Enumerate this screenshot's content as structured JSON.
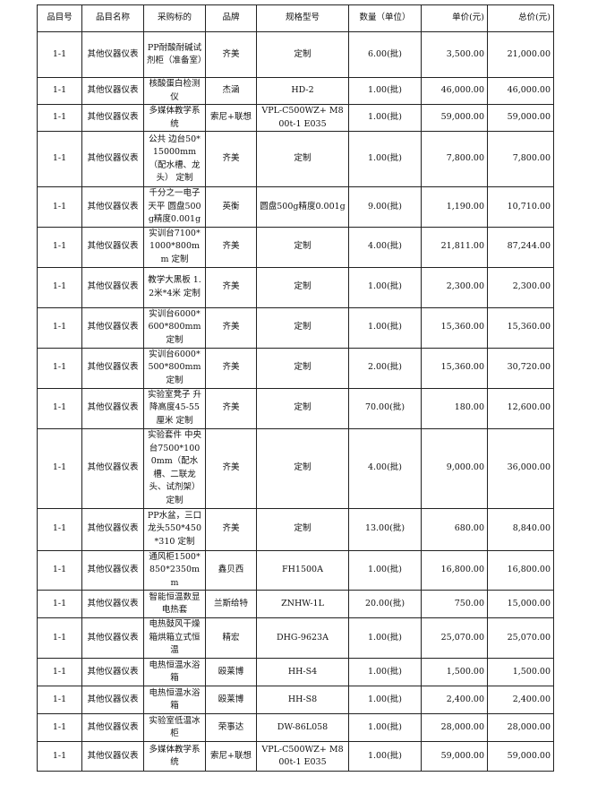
{
  "headers": [
    "品目号",
    "品目名称",
    "采购标的",
    "品牌",
    "规格型号",
    "数量（单位）",
    "单价(元)",
    "总价(元)"
  ],
  "rows": [
    [
      "1-1",
      "其他仪器仪表",
      "PP耐酸耐碱试剂柜（准备室）",
      "齐美",
      "定制",
      "6.00(批)",
      "3,500.00",
      "21,000.00"
    ],
    [
      "1-1",
      "其他仪器仪表",
      "核酸蛋白检测仪",
      "杰涵",
      "HD-2",
      "1.00(批)",
      "46,000.00",
      "46,000.00"
    ],
    [
      "1-1",
      "其他仪器仪表",
      "多媒体教学系统",
      "索尼+联想",
      "VPL-C500WZ+ M800t-1 E035",
      "1.00(批)",
      "59,000.00",
      "59,000.00"
    ],
    [
      "1-1",
      "其他仪器仪表",
      "公共 边台50*15000mm（配水槽、龙头） 定制",
      "齐美",
      "定制",
      "1.00(批)",
      "7,800.00",
      "7,800.00"
    ],
    [
      "1-1",
      "其他仪器仪表",
      "千分之一电子天平 圆盘500g精度0.001g",
      "英衡",
      "圆盘500g精度0.001g",
      "9.00(批)",
      "1,190.00",
      "10,710.00"
    ],
    [
      "1-1",
      "其他仪器仪表",
      "实训台7100*1000*800mm 定制",
      "齐美",
      "定制",
      "4.00(批)",
      "21,811.00",
      "87,244.00"
    ],
    [
      "1-1",
      "其他仪器仪表",
      "教学大黑板 1.2米*4米 定制",
      "齐美",
      "定制",
      "1.00(批)",
      "2,300.00",
      "2,300.00"
    ],
    [
      "1-1",
      "其他仪器仪表",
      "实训台6000*600*800mm 定制",
      "齐美",
      "定制",
      "1.00(批)",
      "15,360.00",
      "15,360.00"
    ],
    [
      "1-1",
      "其他仪器仪表",
      "实训台6000*500*800mm 定制",
      "齐美",
      "定制",
      "2.00(批)",
      "15,360.00",
      "30,720.00"
    ],
    [
      "1-1",
      "其他仪器仪表",
      "实验室凳子 升降高度45-55厘米 定制",
      "齐美",
      "定制",
      "70.00(批)",
      "180.00",
      "12,600.00"
    ],
    [
      "1-1",
      "其他仪器仪表",
      "实验套件 中央台7500*1000mm（配水槽、二联龙头、试剂架） 定制",
      "齐美",
      "定制",
      "4.00(批)",
      "9,000.00",
      "36,000.00"
    ],
    [
      "1-1",
      "其他仪器仪表",
      "PP水盆，三口龙头550*450*310 定制",
      "齐美",
      "定制",
      "13.00(批)",
      "680.00",
      "8,840.00"
    ],
    [
      "1-1",
      "其他仪器仪表",
      "通风柜1500*850*2350mm",
      "鑫贝西",
      "FH1500A",
      "1.00(批)",
      "16,800.00",
      "16,800.00"
    ],
    [
      "1-1",
      "其他仪器仪表",
      "智能恒温数显电热套",
      "兰斯给特",
      "ZNHW-1L",
      "20.00(批)",
      "750.00",
      "15,000.00"
    ],
    [
      "1-1",
      "其他仪器仪表",
      "电热鼓风干燥箱烘箱立式恒温",
      "精宏",
      "DHG-9623A",
      "1.00(批)",
      "25,070.00",
      "25,070.00"
    ],
    [
      "1-1",
      "其他仪器仪表",
      "电热恒温水浴箱",
      "殴莱博",
      "HH-S4",
      "1.00(批)",
      "1,500.00",
      "1,500.00"
    ],
    [
      "1-1",
      "其他仪器仪表",
      "电热恒温水浴箱",
      "殴莱博",
      "HH-S8",
      "1.00(批)",
      "2,400.00",
      "2,400.00"
    ],
    [
      "1-1",
      "其他仪器仪表",
      "实验室低温冰柜",
      "荣事达",
      "DW-86L058",
      "1.00(批)",
      "28,000.00",
      "28,000.00"
    ],
    [
      "1-1",
      "其他仪器仪表",
      "多媒体教学系统",
      "索尼+联想",
      "VPL-C500WZ+ M800t-1 E035",
      "1.00(批)",
      "59,000.00",
      "59,000.00"
    ]
  ]
}
